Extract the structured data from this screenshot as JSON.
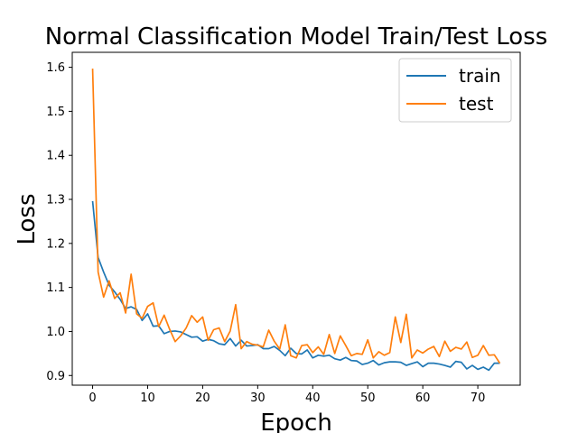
{
  "chart_data": {
    "type": "line",
    "title": "Normal Classification Model Train/Test Loss",
    "xlabel": "Epoch",
    "ylabel": "Loss",
    "xlim": [
      -3.7,
      77.7
    ],
    "ylim": [
      0.878,
      1.634
    ],
    "xticks": [
      0,
      10,
      20,
      30,
      40,
      50,
      60,
      70
    ],
    "yticks": [
      0.9,
      1.0,
      1.1,
      1.2,
      1.3,
      1.4,
      1.5,
      1.6
    ],
    "ytick_labels": [
      "0.9",
      "1.0",
      "1.1",
      "1.2",
      "1.3",
      "1.4",
      "1.5",
      "1.6"
    ],
    "grid": false,
    "legend_position": "upper right",
    "series": [
      {
        "name": "train",
        "color": "#1f77b4",
        "values": [
          1.296,
          1.168,
          1.135,
          1.105,
          1.09,
          1.073,
          1.052,
          1.056,
          1.05,
          1.025,
          1.04,
          1.012,
          1.013,
          0.995,
          1.0,
          1.001,
          0.999,
          0.993,
          0.987,
          0.988,
          0.978,
          0.982,
          0.979,
          0.972,
          0.97,
          0.984,
          0.967,
          0.98,
          0.967,
          0.968,
          0.97,
          0.961,
          0.961,
          0.966,
          0.957,
          0.945,
          0.962,
          0.95,
          0.949,
          0.958,
          0.94,
          0.946,
          0.944,
          0.946,
          0.938,
          0.935,
          0.941,
          0.934,
          0.933,
          0.925,
          0.928,
          0.934,
          0.924,
          0.929,
          0.931,
          0.931,
          0.93,
          0.923,
          0.927,
          0.931,
          0.92,
          0.928,
          0.928,
          0.926,
          0.923,
          0.919,
          0.932,
          0.93,
          0.915,
          0.923,
          0.914,
          0.919,
          0.912,
          0.928,
          0.928
        ]
      },
      {
        "name": "test",
        "color": "#ff7f0e",
        "values": [
          1.597,
          1.135,
          1.078,
          1.115,
          1.075,
          1.088,
          1.042,
          1.13,
          1.04,
          1.03,
          1.057,
          1.065,
          1.011,
          1.037,
          1.005,
          0.977,
          0.99,
          1.008,
          1.036,
          1.021,
          1.033,
          0.98,
          1.004,
          1.008,
          0.977,
          1.001,
          1.061,
          0.961,
          0.977,
          0.971,
          0.969,
          0.965,
          1.003,
          0.978,
          0.96,
          1.015,
          0.945,
          0.94,
          0.968,
          0.97,
          0.952,
          0.965,
          0.948,
          0.993,
          0.95,
          0.99,
          0.968,
          0.945,
          0.95,
          0.948,
          0.981,
          0.94,
          0.954,
          0.946,
          0.952,
          1.033,
          0.975,
          1.039,
          0.94,
          0.958,
          0.951,
          0.96,
          0.966,
          0.943,
          0.978,
          0.955,
          0.964,
          0.96,
          0.976,
          0.941,
          0.946,
          0.968,
          0.946,
          0.947,
          0.928
        ]
      }
    ]
  }
}
